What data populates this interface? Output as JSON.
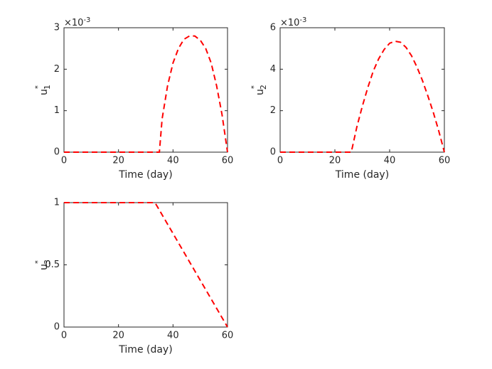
{
  "chart_data": [
    {
      "type": "line",
      "xlabel": "Time (day)",
      "ylabel": "u",
      "ylabel_sup": "*",
      "ylabel_sub": "1",
      "exponent_base": "×10",
      "exponent": "-3",
      "x": [
        0,
        5,
        10,
        15,
        20,
        25,
        30,
        35,
        36,
        38,
        40,
        42,
        44,
        46,
        48,
        50,
        52,
        54,
        56,
        58,
        60
      ],
      "values": [
        0,
        0,
        0,
        0,
        0,
        0,
        0,
        0,
        0.8,
        1.6,
        2.15,
        2.5,
        2.72,
        2.8,
        2.8,
        2.7,
        2.5,
        2.15,
        1.6,
        0.9,
        0
      ],
      "color": "#ff0000",
      "line_style": "dashed",
      "xlim": [
        0,
        60
      ],
      "xticks": [
        0,
        20,
        40,
        60
      ],
      "ylim": [
        0,
        3
      ],
      "yticks": [
        0,
        1,
        2,
        3
      ]
    },
    {
      "type": "line",
      "xlabel": "Time (day)",
      "ylabel": "u",
      "ylabel_sup": "*",
      "ylabel_sub": "2",
      "exponent_base": "×10",
      "exponent": "-3",
      "x": [
        0,
        5,
        10,
        15,
        20,
        26,
        28,
        30,
        32,
        34,
        36,
        38,
        40,
        42,
        44,
        46,
        48,
        50,
        52,
        54,
        56,
        58,
        60
      ],
      "values": [
        0,
        0,
        0,
        0,
        0,
        0,
        1.2,
        2.2,
        3.1,
        3.9,
        4.5,
        4.95,
        5.25,
        5.35,
        5.3,
        5.05,
        4.65,
        4.1,
        3.45,
        2.7,
        1.9,
        1.0,
        0
      ],
      "color": "#ff0000",
      "line_style": "dashed",
      "xlim": [
        0,
        60
      ],
      "xticks": [
        0,
        20,
        40,
        60
      ],
      "ylim": [
        0,
        6
      ],
      "yticks": [
        0,
        2,
        4,
        6
      ]
    },
    {
      "type": "line",
      "xlabel": "Time (day)",
      "ylabel": "u",
      "ylabel_sup": "*",
      "ylabel_sub": "3",
      "x": [
        0,
        33.4,
        60
      ],
      "values": [
        1,
        1,
        0
      ],
      "color": "#ff0000",
      "line_style": "dashed",
      "xlim": [
        0,
        60
      ],
      "xticks": [
        0,
        20,
        40,
        60
      ],
      "ylim": [
        0,
        1
      ],
      "yticks": [
        0,
        0.5,
        1
      ]
    }
  ]
}
